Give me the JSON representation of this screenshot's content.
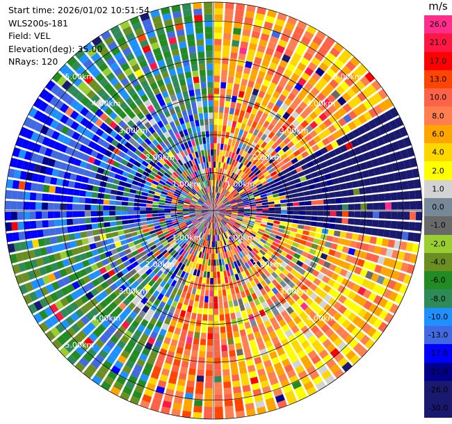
{
  "header": {
    "start_time": "Start time: 2026/01/02 10:51:54",
    "instrument": "WLS200s-181",
    "field": "Field: VEL",
    "elevation": "Elevation(deg): 35.00",
    "nrays": "NRays: 120"
  },
  "colorbar": {
    "unit": "m/s",
    "levels": [
      {
        "label": "26.0",
        "color": "#ff2d8c"
      },
      {
        "label": "21.0",
        "color": "#ff1744"
      },
      {
        "label": "17.0",
        "color": "#ff0000"
      },
      {
        "label": "13.0",
        "color": "#ff4500"
      },
      {
        "label": "10.0",
        "color": "#ff6347"
      },
      {
        "label": "8.0",
        "color": "#ff7f50"
      },
      {
        "label": "6.0",
        "color": "#ffa500"
      },
      {
        "label": "4.0",
        "color": "#ffd700"
      },
      {
        "label": "2.0",
        "color": "#ffff00"
      },
      {
        "label": "1.0",
        "color": "#d3d3d3"
      },
      {
        "label": "0.0",
        "color": "#778899"
      },
      {
        "label": "-1.0",
        "color": "#696969"
      },
      {
        "label": "-2.0",
        "color": "#9acd32"
      },
      {
        "label": "-4.0",
        "color": "#6b8e23"
      },
      {
        "label": "-6.0",
        "color": "#228b22"
      },
      {
        "label": "-8.0",
        "color": "#2e8b57"
      },
      {
        "label": "-10.0",
        "color": "#1e90ff"
      },
      {
        "label": "-13.0",
        "color": "#4169e1"
      },
      {
        "label": "-17.0",
        "color": "#0000ff"
      },
      {
        "label": "-21.0",
        "color": "#00008b"
      },
      {
        "label": "-26.0",
        "color": "#191970"
      },
      {
        "label": "-30.0",
        "color": "#191970"
      }
    ]
  },
  "chart_data": {
    "type": "heatmap",
    "projection": "polar-ppi",
    "field": "VEL",
    "units": "m/s",
    "nrays": 120,
    "elevation_deg": 35.0,
    "max_range_km": 5.5,
    "range_rings_km": [
      1,
      2,
      3,
      4,
      5
    ],
    "range_ring_labels": [
      {
        "label": "1.00km",
        "angle_deg": 45
      },
      {
        "label": "2.00km",
        "angle_deg": 45
      },
      {
        "label": "3.00km",
        "angle_deg": 45
      },
      {
        "label": "4.00km",
        "angle_deg": 45
      },
      {
        "label": "5.00km",
        "angle_deg": 45
      },
      {
        "label": "1.00km",
        "angle_deg": 315
      },
      {
        "label": "2.00km",
        "angle_deg": 315
      },
      {
        "label": "3.00km",
        "angle_deg": 315
      },
      {
        "label": "4.00km",
        "angle_deg": 315
      },
      {
        "label": "5.00km",
        "angle_deg": 315
      },
      {
        "label": "1.00km",
        "angle_deg": 135
      },
      {
        "label": "2.00km",
        "angle_deg": 135
      },
      {
        "label": "3.00km",
        "angle_deg": 135
      },
      {
        "label": "4.00km",
        "angle_deg": 135
      },
      {
        "label": "1.00km",
        "angle_deg": 225
      },
      {
        "label": "2.00km",
        "angle_deg": 225
      },
      {
        "label": "3.00km",
        "angle_deg": 225
      },
      {
        "label": "4.00km",
        "angle_deg": 225
      },
      {
        "label": "5.00km",
        "angle_deg": 225
      }
    ],
    "sector_velocity_pattern": [
      {
        "azimuth_from": 0,
        "azimuth_to": 60,
        "dominant_velocity": 8.0
      },
      {
        "azimuth_from": 60,
        "azimuth_to": 100,
        "dominant_velocity": -26.0
      },
      {
        "azimuth_from": 100,
        "azimuth_to": 170,
        "dominant_velocity": 6.0
      },
      {
        "azimuth_from": 170,
        "azimuth_to": 200,
        "dominant_velocity": 10.0
      },
      {
        "azimuth_from": 200,
        "azimuth_to": 260,
        "dominant_velocity": -6.0
      },
      {
        "azimuth_from": 260,
        "azimuth_to": 310,
        "dominant_velocity": -13.0
      },
      {
        "azimuth_from": 310,
        "azimuth_to": 360,
        "dominant_velocity": -6.0
      }
    ]
  }
}
